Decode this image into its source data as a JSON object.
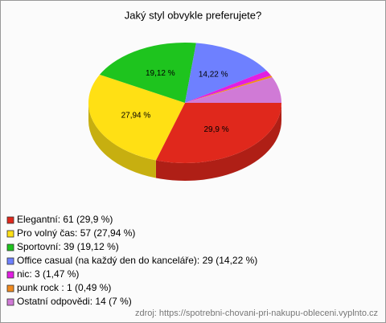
{
  "chart_data": {
    "type": "pie",
    "title": "Jaký styl obvykle preferujete?",
    "categories": [
      "Elegantní: 61 (29,9 %)",
      "Pro volný čas: 57 (27,94 %)",
      "Sportovní: 39 (19,12 %)",
      "Office casual (na každý den do kanceláře): 29 (14,22 %)",
      "nic: 3 (1,47 %)",
      "punk rock : 1 (0,49 %)",
      "Ostatní odpovědi: 14 (7 %)"
    ],
    "values": [
      29.9,
      27.94,
      19.12,
      14.22,
      1.47,
      0.49,
      7
    ],
    "value_labels": [
      "29,9 %",
      "27,94 %",
      "19,12 %",
      "14,22 %",
      null,
      null,
      null
    ],
    "colors": [
      "#e0281c",
      "#ffe014",
      "#1ec41e",
      "#6e80ff",
      "#e21ee2",
      "#f08a1e",
      "#d07ad6"
    ],
    "source": "zdroj: https://spotrebni-chovani-pri-nakupu-obleceni.vyplnto.cz"
  }
}
